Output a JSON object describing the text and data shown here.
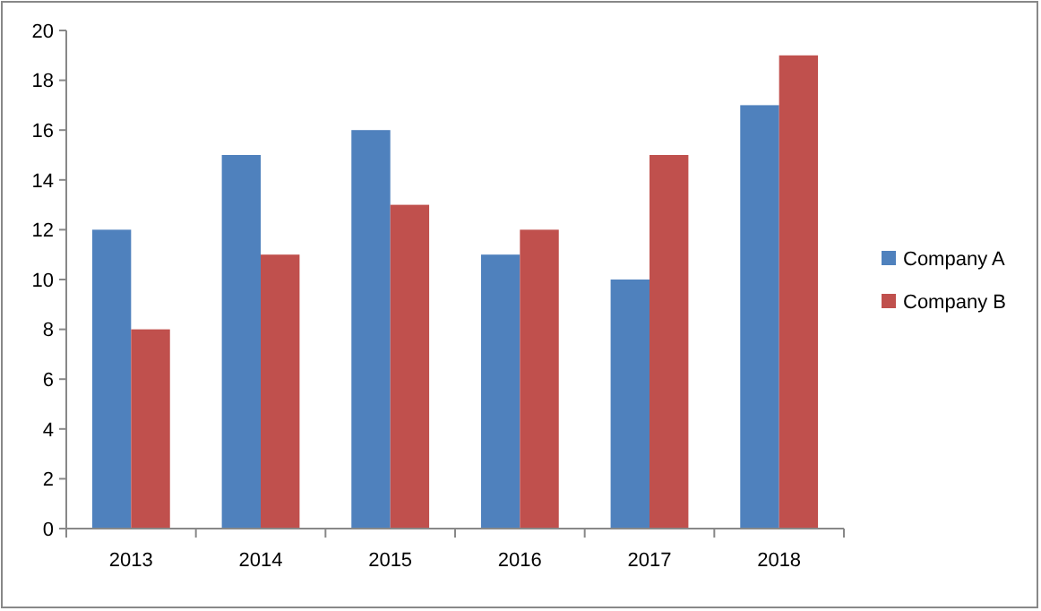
{
  "chart_data": {
    "type": "bar",
    "categories": [
      "2013",
      "2014",
      "2015",
      "2016",
      "2017",
      "2018"
    ],
    "series": [
      {
        "name": "Company A",
        "color": "#4f81bd",
        "values": [
          12,
          15,
          16,
          11,
          10,
          17
        ]
      },
      {
        "name": "Company B",
        "color": "#c0504d",
        "values": [
          8,
          11,
          13,
          12,
          15,
          19
        ]
      }
    ],
    "ylim": [
      0,
      20
    ],
    "yticks": [
      0,
      2,
      4,
      6,
      8,
      10,
      12,
      14,
      16,
      18,
      20
    ],
    "grid": false,
    "legend": "right"
  }
}
